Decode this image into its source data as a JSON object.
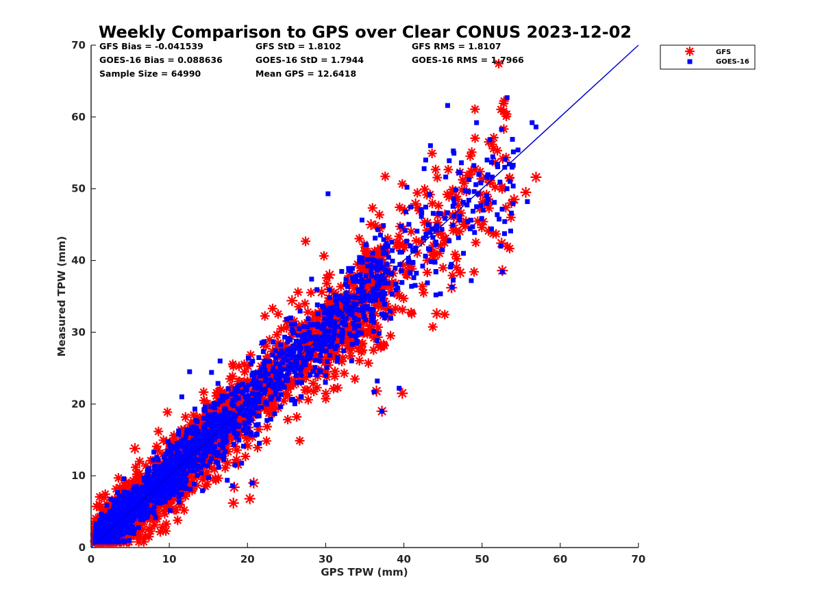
{
  "chart_data": {
    "type": "scatter",
    "title": "Weekly Comparison to GPS over Clear CONUS 2023-12-02",
    "xlabel": "GPS TPW (mm)",
    "ylabel": "Measured TPW (mm)",
    "xlim": [
      0,
      70
    ],
    "ylim": [
      0,
      70
    ],
    "xticks": [
      "0",
      "10",
      "20",
      "30",
      "40",
      "50",
      "60",
      "70"
    ],
    "yticks": [
      "0",
      "10",
      "20",
      "30",
      "40",
      "50",
      "60",
      "70"
    ],
    "grid": false,
    "legend_position": "outside-top-right",
    "reference_line": {
      "name": "1:1 line",
      "x": [
        0,
        70
      ],
      "y": [
        0,
        70
      ],
      "color": "#0000cc"
    },
    "stats": {
      "gfs_bias": "GFS Bias = -0.041539",
      "gfs_std": "GFS StD = 1.8102",
      "gfs_rms": "GFS RMS = 1.8107",
      "goes_bias": "GOES-16 Bias = 0.088636",
      "goes_std": "GOES-16 StD = 1.7944",
      "goes_rms": "GOES-16 RMS = 1.7966",
      "sample_size": "Sample Size = 64990",
      "mean_gps": "Mean GPS = 12.6418"
    },
    "series": [
      {
        "name": "GFS",
        "marker": "asterisk",
        "color": "#ff0000",
        "sample_count": 64990,
        "band": {
          "x_range": [
            0.5,
            57
          ],
          "offset_sd": 1.81,
          "bias": -0.0415
        },
        "outliers": [
          [
            52.5,
            42.4
          ],
          [
            52.6,
            38.6
          ],
          [
            44.2,
            32.6
          ],
          [
            46.1,
            36.2
          ],
          [
            37.2,
            19.0
          ],
          [
            39.8,
            21.5
          ],
          [
            36.5,
            21.8
          ],
          [
            18.2,
            6.2
          ],
          [
            20.3,
            6.8
          ],
          [
            20.8,
            9.0
          ],
          [
            18.3,
            8.4
          ],
          [
            55.6,
            49.5
          ],
          [
            56.9,
            51.6
          ],
          [
            54.1,
            48.5
          ],
          [
            49.1,
            52.7
          ],
          [
            43.8,
            40.2
          ],
          [
            43.5,
            44.4
          ],
          [
            35.8,
            45.0
          ],
          [
            25.7,
            34.4
          ],
          [
            5.6,
            13.8
          ],
          [
            29.5,
            35.6
          ],
          [
            41.5,
            47.9
          ],
          [
            47.2,
            38.3
          ],
          [
            40.1,
            47.0
          ],
          [
            30.5,
            38.0
          ]
        ]
      },
      {
        "name": "GOES-16",
        "marker": "square",
        "color": "#0000ff",
        "sample_count": 64990,
        "band": {
          "x_range": [
            0.5,
            57
          ],
          "offset_sd": 1.79,
          "bias": 0.0886
        },
        "outliers": [
          [
            45.6,
            61.6
          ],
          [
            49.3,
            59.2
          ],
          [
            56.4,
            59.2
          ],
          [
            56.9,
            58.6
          ],
          [
            43.4,
            56.0
          ],
          [
            51.0,
            56.8
          ],
          [
            42.8,
            54.0
          ],
          [
            45.8,
            53.9
          ],
          [
            42.6,
            52.8
          ],
          [
            52.4,
            42.0
          ],
          [
            52.6,
            38.4
          ],
          [
            30.3,
            49.3
          ],
          [
            37.2,
            19.0
          ],
          [
            36.6,
            23.2
          ],
          [
            39.4,
            22.2
          ],
          [
            36.2,
            21.7
          ],
          [
            18.4,
            11.5
          ],
          [
            18.1,
            8.6
          ],
          [
            20.6,
            9.0
          ],
          [
            12.6,
            24.5
          ],
          [
            16.5,
            26.0
          ],
          [
            11.6,
            21.0
          ],
          [
            28.2,
            37.4
          ],
          [
            40.4,
            50.2
          ],
          [
            44.2,
            44.9
          ],
          [
            54.6,
            55.4
          ],
          [
            55.8,
            48.2
          ],
          [
            46.2,
            36.3
          ],
          [
            44.1,
            35.2
          ],
          [
            15.4,
            24.4
          ],
          [
            53.2,
            50.0
          ],
          [
            48.8,
            44.7
          ]
        ]
      }
    ]
  }
}
